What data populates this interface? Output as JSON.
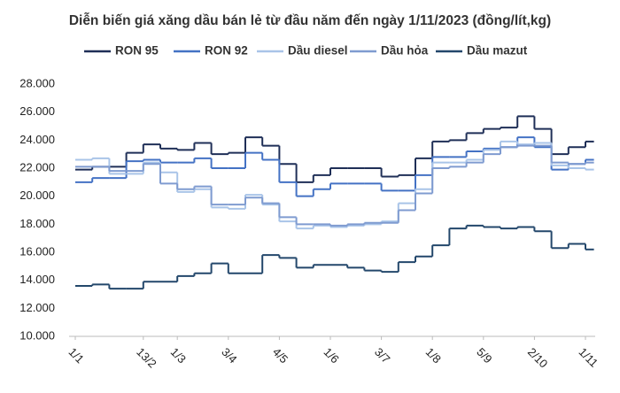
{
  "chart_data": {
    "type": "step-line",
    "title": "Diễn biến giá xăng dầu bán lẻ từ đầu năm đến ngày 1/11/2023 (đồng/lít,kg)",
    "categories": [
      "1/1",
      null,
      null,
      null,
      "13/2",
      null,
      "1/3",
      null,
      null,
      "3/4",
      null,
      null,
      "4/5",
      null,
      null,
      "1/6",
      null,
      null,
      "3/7",
      null,
      null,
      "1/8",
      null,
      null,
      "5/9",
      null,
      null,
      "2/10",
      null,
      null,
      "1/11"
    ],
    "series": [
      {
        "name": "RON 95",
        "color": "#1f2f57",
        "values": [
          21900,
          22100,
          22100,
          23100,
          23700,
          23400,
          23300,
          23800,
          23000,
          23100,
          24200,
          23600,
          22300,
          21000,
          21500,
          22000,
          22000,
          22000,
          21400,
          21500,
          22700,
          23900,
          24000,
          24500,
          24800,
          24900,
          25700,
          24800,
          23000,
          23500,
          23900
        ]
      },
      {
        "name": "RON 92",
        "color": "#4472c4",
        "values": [
          21000,
          21300,
          21300,
          22500,
          22600,
          22400,
          22400,
          22700,
          22000,
          22000,
          23100,
          22600,
          21000,
          20000,
          20500,
          20900,
          20900,
          20900,
          20400,
          20400,
          21500,
          22800,
          22800,
          23200,
          23400,
          23500,
          24200,
          23500,
          21900,
          22300,
          22600
        ]
      },
      {
        "name": "Dầu diesel",
        "color": "#a9c4e8",
        "values": [
          22600,
          22700,
          21600,
          21600,
          22400,
          21700,
          20300,
          20500,
          19200,
          19100,
          20100,
          19400,
          18200,
          17700,
          17900,
          17800,
          17900,
          18000,
          18200,
          19500,
          20500,
          22400,
          22400,
          22600,
          23300,
          23900,
          23700,
          23800,
          22200,
          22000,
          21900
        ]
      },
      {
        "name": "Dầu hỏa",
        "color": "#7f9bd0",
        "values": [
          22100,
          22100,
          21800,
          21800,
          22300,
          20900,
          20500,
          20700,
          19400,
          19400,
          19900,
          19500,
          18500,
          18000,
          18000,
          17900,
          18000,
          18100,
          18100,
          19000,
          20200,
          22000,
          22100,
          22400,
          23000,
          23500,
          23600,
          23600,
          22400,
          22300,
          22400
        ]
      },
      {
        "name": "Dầu mazut",
        "color": "#23476b",
        "values": [
          13600,
          13700,
          13400,
          13400,
          13900,
          13900,
          14300,
          14500,
          15200,
          14500,
          14500,
          15800,
          15600,
          14900,
          15100,
          15100,
          14900,
          14700,
          14600,
          15300,
          15700,
          16500,
          17700,
          17900,
          17800,
          17700,
          17800,
          17500,
          16300,
          16600,
          16200
        ]
      }
    ],
    "ylim": [
      10000,
      28000
    ],
    "yticks": [
      {
        "value": 10000,
        "label": "10.000"
      },
      {
        "value": 12000,
        "label": "12.000"
      },
      {
        "value": 14000,
        "label": "14.000"
      },
      {
        "value": 16000,
        "label": "16.000"
      },
      {
        "value": 18000,
        "label": "18.000"
      },
      {
        "value": 20000,
        "label": "20.000"
      },
      {
        "value": 22000,
        "label": "22.000"
      },
      {
        "value": 24000,
        "label": "24.000"
      },
      {
        "value": 26000,
        "label": "26.000"
      },
      {
        "value": 28000,
        "label": "28.000"
      }
    ],
    "grid": false
  }
}
